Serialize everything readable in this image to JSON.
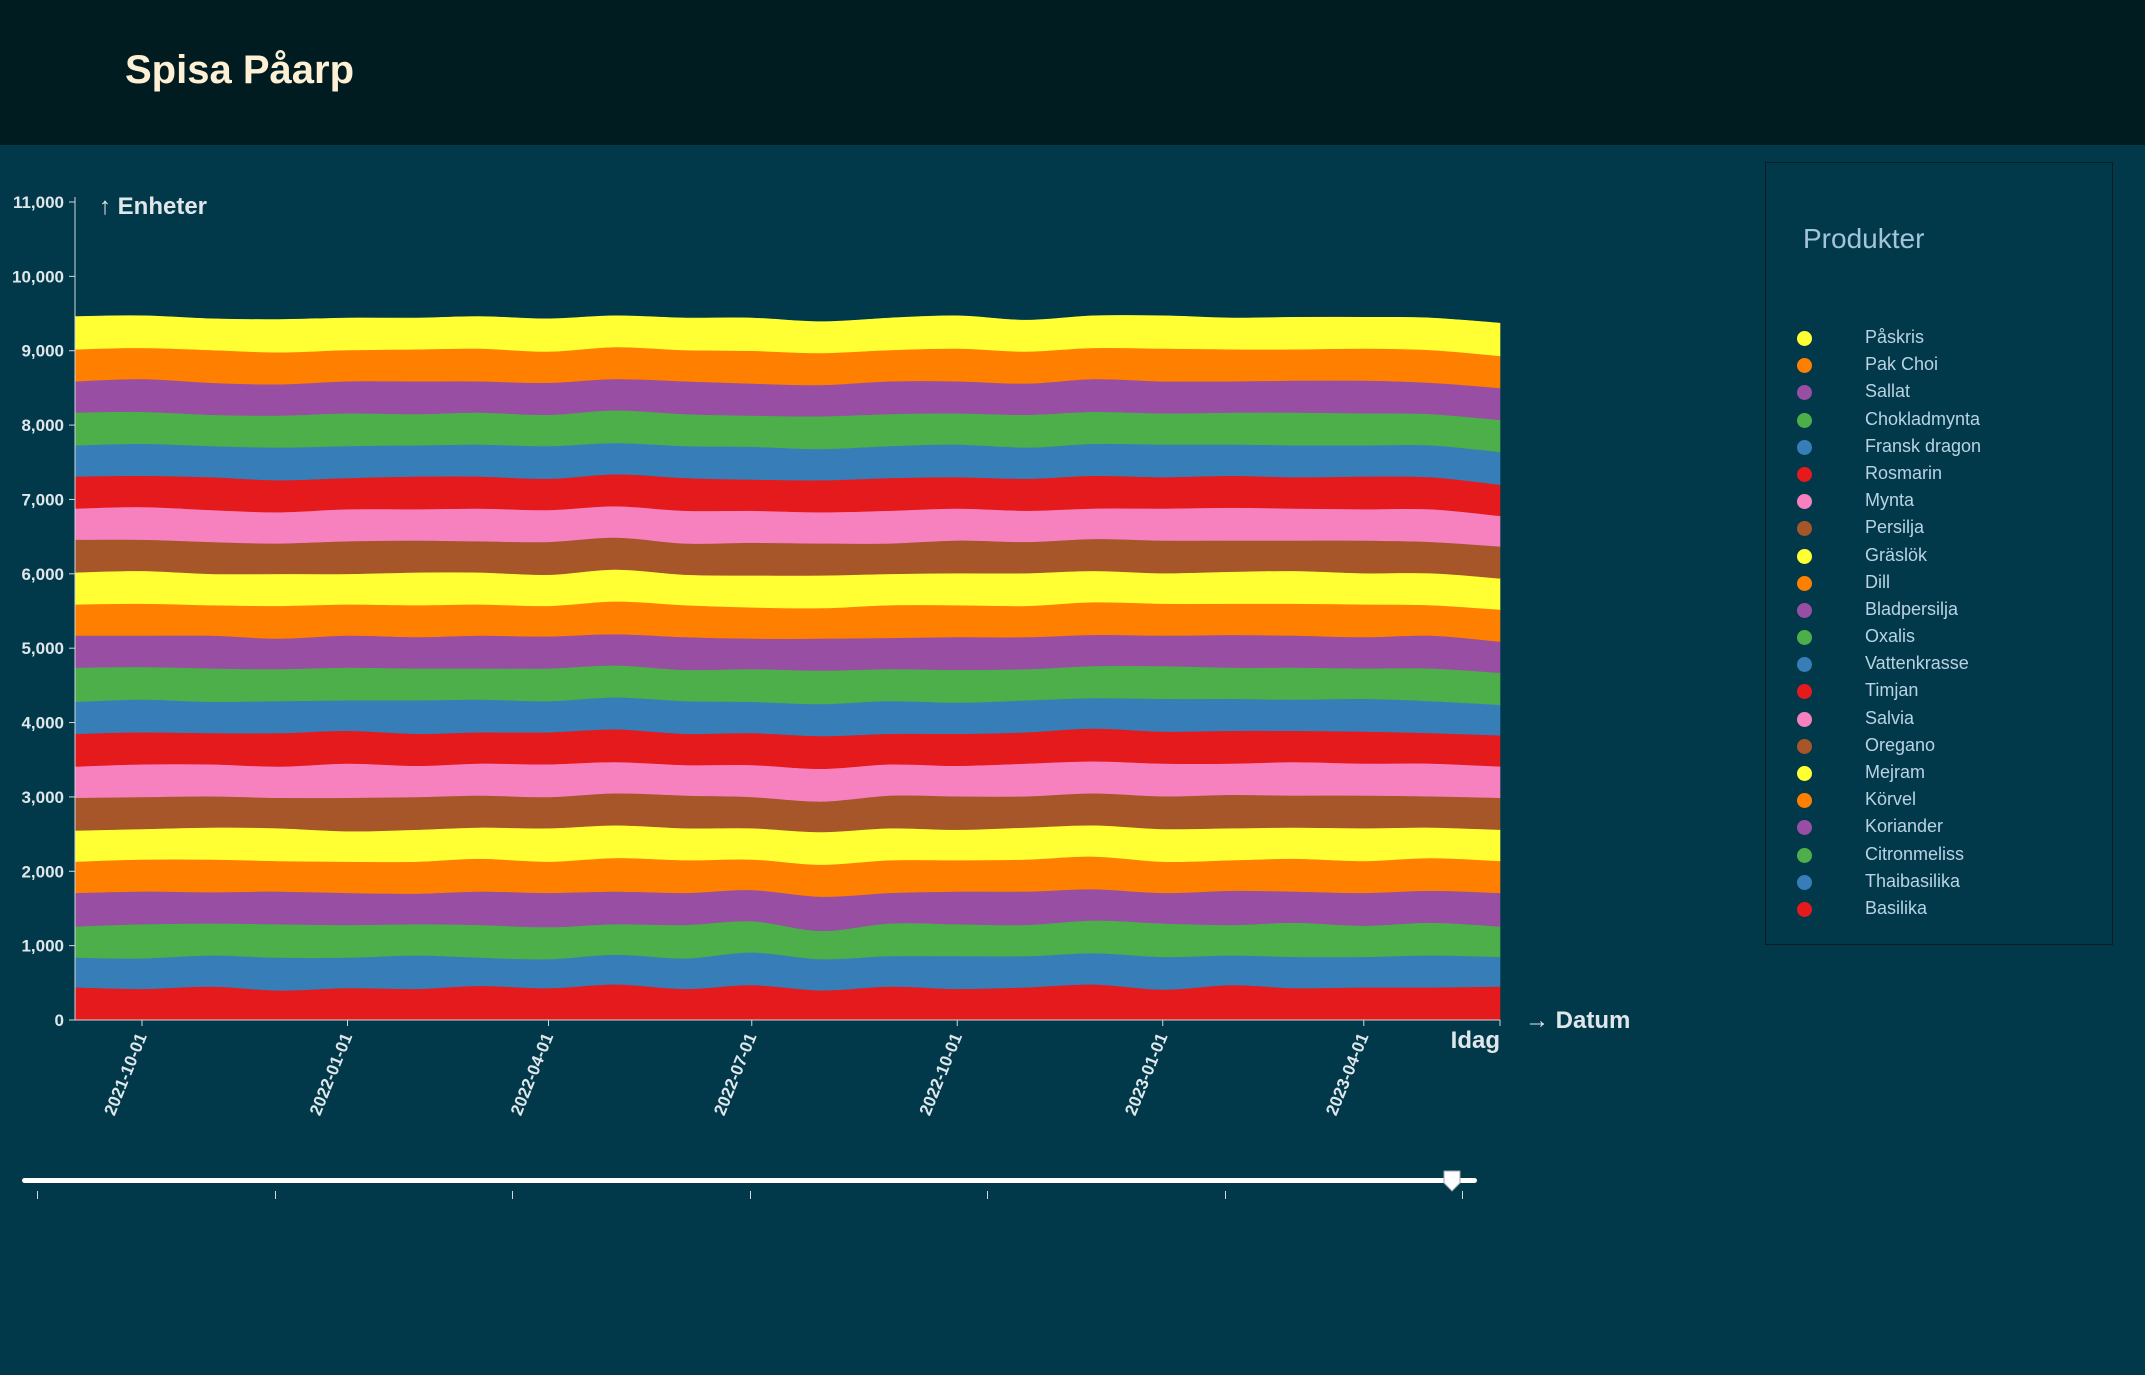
{
  "header": {
    "title": "Spisa Påarp"
  },
  "chart_data": {
    "type": "area",
    "stacked": true,
    "x": [
      "2021-09-01",
      "2021-10-01",
      "2021-11-01",
      "2021-12-01",
      "2022-01-01",
      "2022-02-01",
      "2022-03-01",
      "2022-04-01",
      "2022-05-01",
      "2022-06-01",
      "2022-07-01",
      "2022-08-01",
      "2022-09-01",
      "2022-10-01",
      "2022-11-01",
      "2022-12-01",
      "2023-01-01",
      "2023-02-01",
      "2023-03-01",
      "2023-04-01",
      "2023-05-01",
      "2023-06-01"
    ],
    "xticks": [
      "2021-10-01",
      "2022-01-01",
      "2022-04-01",
      "2022-07-01",
      "2022-10-01",
      "2023-01-01",
      "2023-04-01"
    ],
    "xlabel": "→ Datum",
    "ylabel": "↑ Enheter",
    "x_end_label": "Idag",
    "ylim": [
      0,
      11000
    ],
    "yticks": [
      0,
      1000,
      2000,
      3000,
      4000,
      5000,
      6000,
      7000,
      8000,
      9000,
      10000,
      11000
    ],
    "series": [
      {
        "name": "Basilika",
        "color": "#e41a1c",
        "values": [
          440,
          420,
          450,
          400,
          430,
          420,
          460,
          430,
          480,
          420,
          470,
          400,
          450,
          420,
          440,
          480,
          410,
          470,
          430,
          440,
          440,
          450
        ]
      },
      {
        "name": "Thaibasilika",
        "color": "#377eb8",
        "values": [
          400,
          410,
          420,
          440,
          410,
          450,
          380,
          390,
          400,
          410,
          440,
          420,
          410,
          440,
          420,
          420,
          440,
          400,
          420,
          410,
          430,
          400
        ]
      },
      {
        "name": "Citronmeliss",
        "color": "#4daf4a",
        "values": [
          420,
          460,
          430,
          450,
          440,
          420,
          440,
          430,
          410,
          450,
          420,
          380,
          440,
          430,
          420,
          440,
          450,
          410,
          460,
          420,
          440,
          410
        ]
      },
      {
        "name": "Koriander",
        "color": "#984ea3",
        "values": [
          450,
          440,
          420,
          440,
          430,
          410,
          450,
          460,
          440,
          430,
          420,
          460,
          410,
          440,
          450,
          420,
          410,
          460,
          420,
          440,
          430,
          450
        ]
      },
      {
        "name": "Körvel",
        "color": "#ff7f00",
        "values": [
          420,
          430,
          440,
          410,
          420,
          430,
          440,
          420,
          450,
          440,
          410,
          430,
          440,
          420,
          430,
          440,
          420,
          410,
          440,
          430,
          440,
          430
        ]
      },
      {
        "name": "Mejram",
        "color": "#ffff33",
        "values": [
          420,
          410,
          430,
          440,
          410,
          430,
          420,
          450,
          440,
          430,
          420,
          440,
          430,
          410,
          430,
          420,
          440,
          430,
          420,
          440,
          410,
          420
        ]
      },
      {
        "name": "Oregano",
        "color": "#a65628",
        "values": [
          440,
          430,
          420,
          410,
          450,
          440,
          430,
          420,
          430,
          440,
          420,
          410,
          440,
          450,
          420,
          430,
          440,
          450,
          430,
          440,
          420,
          430
        ]
      },
      {
        "name": "Salvia",
        "color": "#f781bf",
        "values": [
          420,
          440,
          430,
          420,
          460,
          420,
          430,
          440,
          420,
          410,
          430,
          440,
          420,
          410,
          440,
          430,
          440,
          420,
          450,
          430,
          440,
          420
        ]
      },
      {
        "name": "Timjan",
        "color": "#e41a1c",
        "values": [
          440,
          430,
          420,
          450,
          440,
          430,
          420,
          430,
          440,
          420,
          430,
          440,
          410,
          430,
          420,
          440,
          430,
          440,
          420,
          430,
          410,
          420
        ]
      },
      {
        "name": "Vattenkrasse",
        "color": "#377eb8",
        "values": [
          430,
          440,
          420,
          430,
          410,
          450,
          440,
          420,
          430,
          440,
          420,
          430,
          440,
          420,
          430,
          410,
          440,
          430,
          420,
          440,
          430,
          410
        ]
      },
      {
        "name": "Oxalis",
        "color": "#4daf4a",
        "values": [
          460,
          440,
          450,
          430,
          440,
          430,
          420,
          440,
          430,
          420,
          440,
          450,
          430,
          440,
          420,
          430,
          440,
          420,
          430,
          410,
          440,
          430
        ]
      },
      {
        "name": "Bladpersilja",
        "color": "#984ea3",
        "values": [
          430,
          420,
          440,
          410,
          430,
          420,
          440,
          430,
          420,
          440,
          410,
          430,
          420,
          440,
          430,
          420,
          410,
          440,
          430,
          420,
          440,
          420
        ]
      },
      {
        "name": "Dill",
        "color": "#ff7f00",
        "values": [
          420,
          430,
          410,
          440,
          420,
          430,
          420,
          410,
          440,
          430,
          420,
          410,
          440,
          430,
          420,
          440,
          430,
          420,
          430,
          440,
          410,
          430
        ]
      },
      {
        "name": "Gräslök",
        "color": "#ffff33",
        "values": [
          430,
          440,
          420,
          430,
          410,
          440,
          430,
          420,
          430,
          410,
          430,
          440,
          420,
          430,
          440,
          420,
          410,
          430,
          440,
          420,
          430,
          420
        ]
      },
      {
        "name": "Persilja",
        "color": "#a65628",
        "values": [
          440,
          420,
          430,
          410,
          440,
          430,
          420,
          440,
          430,
          420,
          440,
          430,
          410,
          440,
          420,
          430,
          440,
          420,
          410,
          440,
          420,
          430
        ]
      },
      {
        "name": "Mynta",
        "color": "#f781bf",
        "values": [
          420,
          440,
          430,
          420,
          430,
          420,
          440,
          430,
          420,
          440,
          430,
          420,
          440,
          430,
          420,
          410,
          430,
          440,
          430,
          420,
          440,
          410
        ]
      },
      {
        "name": "Rosmarin",
        "color": "#e41a1c",
        "values": [
          430,
          420,
          440,
          430,
          420,
          440,
          430,
          420,
          430,
          440,
          420,
          430,
          440,
          420,
          430,
          440,
          420,
          430,
          420,
          440,
          430,
          420
        ]
      },
      {
        "name": "Fransk dragon",
        "color": "#377eb8",
        "values": [
          420,
          430,
          420,
          440,
          430,
          420,
          430,
          440,
          420,
          430,
          440,
          420,
          430,
          440,
          420,
          430,
          440,
          420,
          430,
          420,
          430,
          440
        ]
      },
      {
        "name": "Chokladmynta",
        "color": "#4daf4a",
        "values": [
          440,
          430,
          420,
          430,
          440,
          420,
          430,
          420,
          440,
          430,
          420,
          440,
          430,
          420,
          440,
          430,
          420,
          430,
          440,
          430,
          420,
          430
        ]
      },
      {
        "name": "Sallat",
        "color": "#984ea3",
        "values": [
          420,
          440,
          430,
          420,
          430,
          440,
          420,
          430,
          420,
          440,
          430,
          420,
          440,
          430,
          420,
          440,
          430,
          420,
          430,
          440,
          420,
          430
        ]
      },
      {
        "name": "Pak Choi",
        "color": "#ff7f00",
        "values": [
          430,
          420,
          440,
          430,
          420,
          430,
          440,
          420,
          430,
          420,
          440,
          430,
          420,
          440,
          430,
          420,
          440,
          430,
          420,
          430,
          440,
          430
        ]
      },
      {
        "name": "Påskris",
        "color": "#ffff33",
        "values": [
          440,
          430,
          420,
          440,
          430,
          420,
          430,
          440,
          420,
          430,
          440,
          420,
          430,
          440,
          420,
          430,
          440,
          420,
          430,
          420,
          430,
          440
        ]
      }
    ]
  },
  "legend": {
    "title": "Produkter",
    "items": [
      {
        "label": "Påskris",
        "color": "#ffff33"
      },
      {
        "label": "Pak Choi",
        "color": "#ff7f00"
      },
      {
        "label": "Sallat",
        "color": "#984ea3"
      },
      {
        "label": "Chokladmynta",
        "color": "#4daf4a"
      },
      {
        "label": "Fransk dragon",
        "color": "#377eb8"
      },
      {
        "label": "Rosmarin",
        "color": "#e41a1c"
      },
      {
        "label": "Mynta",
        "color": "#f781bf"
      },
      {
        "label": "Persilja",
        "color": "#a65628"
      },
      {
        "label": "Gräslök",
        "color": "#ffff33"
      },
      {
        "label": "Dill",
        "color": "#ff7f00"
      },
      {
        "label": "Bladpersilja",
        "color": "#984ea3"
      },
      {
        "label": "Oxalis",
        "color": "#4daf4a"
      },
      {
        "label": "Vattenkrasse",
        "color": "#377eb8"
      },
      {
        "label": "Timjan",
        "color": "#e41a1c"
      },
      {
        "label": "Salvia",
        "color": "#f781bf"
      },
      {
        "label": "Oregano",
        "color": "#a65628"
      },
      {
        "label": "Mejram",
        "color": "#ffff33"
      },
      {
        "label": "Körvel",
        "color": "#ff7f00"
      },
      {
        "label": "Koriander",
        "color": "#984ea3"
      },
      {
        "label": "Citronmeliss",
        "color": "#4daf4a"
      },
      {
        "label": "Thaibasilika",
        "color": "#377eb8"
      },
      {
        "label": "Basilika",
        "color": "#e41a1c"
      }
    ]
  },
  "slider": {
    "value_fraction": 0.983,
    "tick_count": 7
  }
}
